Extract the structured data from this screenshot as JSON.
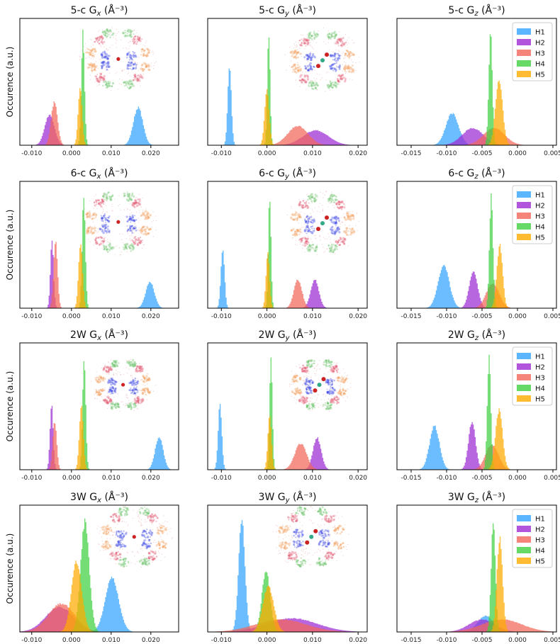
{
  "figure": {
    "ylabel": "Occurence (a.u.)",
    "legend": [
      "H1",
      "H2",
      "H3",
      "H4",
      "H5"
    ],
    "colors": [
      "#33a3ff",
      "#9d2ad4",
      "#f2665a",
      "#40d040",
      "#ffab00"
    ]
  },
  "chart_data": [
    {
      "type": "area",
      "title": "5-c Gx (Å⁻³)",
      "ylabel": "Occurence (a.u.)",
      "xlim": [
        -0.013,
        0.027
      ],
      "xticks": [
        -0.01,
        0.0,
        0.01,
        0.02
      ],
      "xticklabels": [
        "-0.010",
        "0.000",
        "0.010",
        "0.020"
      ],
      "inset": "ring",
      "legend": false,
      "series": [
        {
          "name": "H1",
          "center": 0.0168,
          "width": 0.0012,
          "height": 0.33
        },
        {
          "name": "H2",
          "center": -0.0055,
          "width": 0.0012,
          "height": 0.27
        },
        {
          "name": "H3",
          "center": -0.0043,
          "width": 0.0008,
          "height": 0.38
        },
        {
          "name": "H4",
          "center": 0.0029,
          "width": 0.0004,
          "height": 0.98
        },
        {
          "name": "H5",
          "center": 0.0022,
          "width": 0.0005,
          "height": 0.52
        }
      ]
    },
    {
      "type": "area",
      "title": "5-c Gy (Å⁻³)",
      "xlim": [
        -0.013,
        0.022
      ],
      "xticks": [
        -0.01,
        0.0,
        0.01,
        0.02
      ],
      "xticklabels": [
        "-0.010",
        "0.000",
        "0.010",
        "0.020"
      ],
      "inset": "ring-mol",
      "legend": false,
      "series": [
        {
          "name": "H1",
          "center": -0.0082,
          "width": 0.0004,
          "height": 0.68
        },
        {
          "name": "H2",
          "center": 0.0107,
          "width": 0.0028,
          "height": 0.13
        },
        {
          "name": "H3",
          "center": 0.0068,
          "width": 0.0022,
          "height": 0.17
        },
        {
          "name": "H4",
          "center": 0.0004,
          "width": 0.0003,
          "height": 0.98
        },
        {
          "name": "H5",
          "center": 0.0,
          "width": 0.0005,
          "height": 0.48
        }
      ]
    },
    {
      "type": "area",
      "title": "5-c Gz (Å⁻³)",
      "xlim": [
        -0.017,
        0.0055
      ],
      "xticks": [
        -0.015,
        -0.01,
        -0.005,
        0.0,
        0.005
      ],
      "xticklabels": [
        "-0.015",
        "-0.010",
        "-0.005",
        "0.000",
        "0.005"
      ],
      "inset": "none",
      "legend": true,
      "series": [
        {
          "name": "H1",
          "center": -0.0092,
          "width": 0.0009,
          "height": 0.28
        },
        {
          "name": "H2",
          "center": -0.0063,
          "width": 0.0015,
          "height": 0.15
        },
        {
          "name": "H3",
          "center": -0.0033,
          "width": 0.0015,
          "height": 0.15
        },
        {
          "name": "H4",
          "center": -0.0038,
          "width": 0.00025,
          "height": 0.98
        },
        {
          "name": "H5",
          "center": -0.0026,
          "width": 0.0005,
          "height": 0.58
        }
      ]
    },
    {
      "type": "area",
      "title": "6-c Gx (Å⁻³)",
      "ylabel": "Occurence (a.u.)",
      "xlim": [
        -0.013,
        0.027
      ],
      "xticks": [
        -0.01,
        0.0,
        0.01,
        0.02
      ],
      "xticklabels": [
        "-0.010",
        "0.000",
        "0.010",
        "0.020"
      ],
      "inset": "ring",
      "legend": false,
      "series": [
        {
          "name": "H1",
          "center": 0.0198,
          "width": 0.0011,
          "height": 0.23
        },
        {
          "name": "H2",
          "center": -0.0049,
          "width": 0.0004,
          "height": 0.58
        },
        {
          "name": "H3",
          "center": -0.004,
          "width": 0.0005,
          "height": 0.58
        },
        {
          "name": "H4",
          "center": 0.0031,
          "width": 0.0004,
          "height": 0.98
        },
        {
          "name": "H5",
          "center": 0.0023,
          "width": 0.0005,
          "height": 0.58
        }
      ]
    },
    {
      "type": "area",
      "title": "6-c Gy (Å⁻³)",
      "xlim": [
        -0.013,
        0.022
      ],
      "xticks": [
        -0.01,
        0.0,
        0.01,
        0.02
      ],
      "xticklabels": [
        "-0.010",
        "0.000",
        "0.010",
        "0.020"
      ],
      "inset": "ring-mol",
      "legend": false,
      "series": [
        {
          "name": "H1",
          "center": -0.0097,
          "width": 0.0004,
          "height": 0.53
        },
        {
          "name": "H2",
          "center": 0.0105,
          "width": 0.0009,
          "height": 0.25
        },
        {
          "name": "H3",
          "center": 0.0068,
          "width": 0.0009,
          "height": 0.25
        },
        {
          "name": "H4",
          "center": 0.0006,
          "width": 0.0003,
          "height": 0.98
        },
        {
          "name": "H5",
          "center": 0.0002,
          "width": 0.0004,
          "height": 0.48
        }
      ]
    },
    {
      "type": "area",
      "title": "6-c Gz (Å⁻³)",
      "xlim": [
        -0.017,
        0.0055
      ],
      "xticks": [
        -0.015,
        -0.01,
        -0.005,
        0.0,
        0.005
      ],
      "xticklabels": [
        "-0.015",
        "-0.010",
        "-0.005",
        "0.000",
        "0.005"
      ],
      "inset": "none",
      "legend": true,
      "series": [
        {
          "name": "H1",
          "center": -0.0104,
          "width": 0.0008,
          "height": 0.37
        },
        {
          "name": "H2",
          "center": -0.0062,
          "width": 0.0006,
          "height": 0.32
        },
        {
          "name": "H3",
          "center": -0.0035,
          "width": 0.0009,
          "height": 0.22
        },
        {
          "name": "H4",
          "center": -0.0037,
          "width": 0.00025,
          "height": 0.98
        },
        {
          "name": "H5",
          "center": -0.0025,
          "width": 0.0004,
          "height": 0.55
        }
      ]
    },
    {
      "type": "area",
      "title": "2W Gx (Å⁻³)",
      "ylabel": "Occurence (a.u.)",
      "xlim": [
        -0.013,
        0.027
      ],
      "xticks": [
        -0.01,
        0.0,
        0.01,
        0.02
      ],
      "xticklabels": [
        "-0.010",
        "0.000",
        "0.010",
        "0.020"
      ],
      "inset": "water2",
      "legend": false,
      "series": [
        {
          "name": "H1",
          "center": 0.0221,
          "width": 0.001,
          "height": 0.29
        },
        {
          "name": "H2",
          "center": -0.005,
          "width": 0.0004,
          "height": 0.57
        },
        {
          "name": "H3",
          "center": -0.0042,
          "width": 0.0005,
          "height": 0.42
        },
        {
          "name": "H4",
          "center": 0.0032,
          "width": 0.0004,
          "height": 0.98
        },
        {
          "name": "H5",
          "center": 0.0025,
          "width": 0.0005,
          "height": 0.57
        }
      ]
    },
    {
      "type": "area",
      "title": "2W Gy (Å⁻³)",
      "xlim": [
        -0.013,
        0.022
      ],
      "xticks": [
        -0.01,
        0.0,
        0.01,
        0.02
      ],
      "xticklabels": [
        "-0.010",
        "0.000",
        "0.010",
        "0.020"
      ],
      "inset": "water2-mol",
      "legend": false,
      "series": [
        {
          "name": "H1",
          "center": -0.0103,
          "width": 0.0004,
          "height": 0.57
        },
        {
          "name": "H2",
          "center": 0.011,
          "width": 0.0009,
          "height": 0.28
        },
        {
          "name": "H3",
          "center": 0.0074,
          "width": 0.0013,
          "height": 0.23
        },
        {
          "name": "H4",
          "center": 0.0009,
          "width": 0.0003,
          "height": 0.98
        },
        {
          "name": "H5",
          "center": 0.0006,
          "width": 0.0004,
          "height": 0.48
        }
      ]
    },
    {
      "type": "area",
      "title": "2W Gz (Å⁻³)",
      "xlim": [
        -0.017,
        0.0055
      ],
      "xticks": [
        -0.015,
        -0.01,
        -0.005,
        0.0,
        0.005
      ],
      "xticklabels": [
        "-0.015",
        "-0.010",
        "-0.005",
        "0.000",
        "0.005"
      ],
      "inset": "none",
      "legend": true,
      "series": [
        {
          "name": "H1",
          "center": -0.0117,
          "width": 0.0007,
          "height": 0.38
        },
        {
          "name": "H2",
          "center": -0.0064,
          "width": 0.0005,
          "height": 0.42
        },
        {
          "name": "H3",
          "center": -0.0036,
          "width": 0.0009,
          "height": 0.22
        },
        {
          "name": "H4",
          "center": -0.004,
          "width": 0.00025,
          "height": 0.98
        },
        {
          "name": "H5",
          "center": -0.0026,
          "width": 0.0005,
          "height": 0.52
        }
      ]
    },
    {
      "type": "area",
      "title": "3W Gx (Å⁻³)",
      "ylabel": "Occurence (a.u.)",
      "xlim": [
        -0.013,
        0.027
      ],
      "xticks": [
        -0.01,
        0.0,
        0.01,
        0.02
      ],
      "xticklabels": [
        "-0.010",
        "0.000",
        "0.010",
        "0.020"
      ],
      "inset": "water3",
      "legend": false,
      "series": [
        {
          "name": "H1",
          "center": 0.0102,
          "width": 0.0017,
          "height": 0.47
        },
        {
          "name": "H2",
          "center": -0.003,
          "width": 0.0035,
          "height": 0.22
        },
        {
          "name": "H3",
          "center": -0.0025,
          "width": 0.0033,
          "height": 0.25
        },
        {
          "name": "H4",
          "center": 0.0034,
          "width": 0.0011,
          "height": 0.96
        },
        {
          "name": "H5",
          "center": 0.0013,
          "width": 0.0013,
          "height": 0.62
        }
      ]
    },
    {
      "type": "area",
      "title": "3W Gy (Å⁻³)",
      "xlim": [
        -0.013,
        0.022
      ],
      "xticks": [
        -0.01,
        0.0,
        0.01,
        0.02
      ],
      "xticklabels": [
        "-0.010",
        "0.000",
        "0.010",
        "0.020"
      ],
      "inset": "water3-mol",
      "legend": false,
      "series": [
        {
          "name": "H1",
          "center": -0.0055,
          "width": 0.0007,
          "height": 0.98
        },
        {
          "name": "H2",
          "center": 0.0055,
          "width": 0.0055,
          "height": 0.12
        },
        {
          "name": "H3",
          "center": 0.003,
          "width": 0.0055,
          "height": 0.11
        },
        {
          "name": "H4",
          "center": -0.0002,
          "width": 0.0009,
          "height": 0.54
        },
        {
          "name": "H5",
          "center": 0.0003,
          "width": 0.0012,
          "height": 0.4
        }
      ]
    },
    {
      "type": "area",
      "title": "3W Gz (Å⁻³)",
      "xlim": [
        -0.017,
        0.0055
      ],
      "xticks": [
        -0.015,
        -0.01,
        -0.005,
        0.0,
        0.005
      ],
      "xticklabels": [
        "-0.015",
        "-0.010",
        "-0.005",
        "0.000",
        "0.005"
      ],
      "inset": "none",
      "legend": true,
      "series": [
        {
          "name": "H1",
          "center": -0.0045,
          "width": 0.0011,
          "height": 0.14
        },
        {
          "name": "H2",
          "center": -0.005,
          "width": 0.0018,
          "height": 0.11
        },
        {
          "name": "H3",
          "center": -0.0022,
          "width": 0.0028,
          "height": 0.11
        },
        {
          "name": "H4",
          "center": -0.0034,
          "width": 0.0003,
          "height": 0.98
        },
        {
          "name": "H5",
          "center": -0.0025,
          "width": 0.0004,
          "height": 0.82
        }
      ]
    }
  ]
}
